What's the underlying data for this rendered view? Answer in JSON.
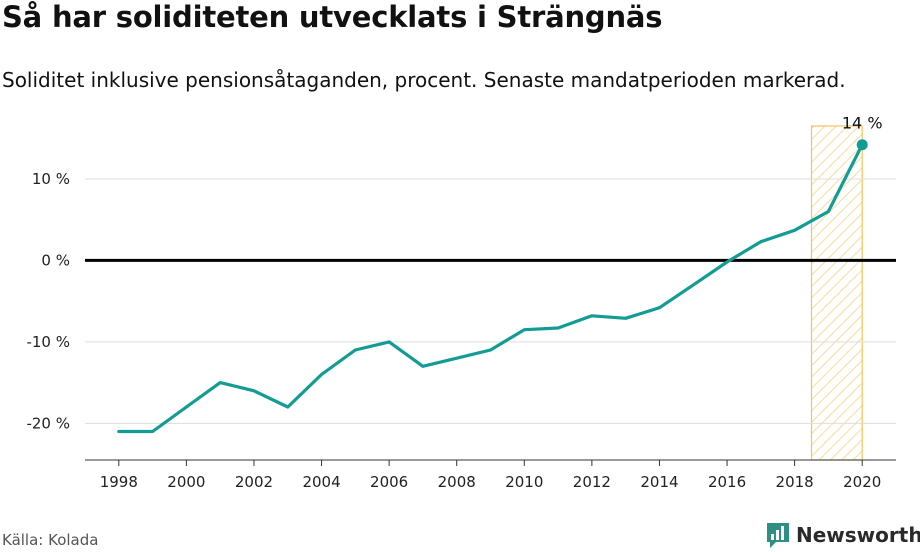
{
  "title": "Så har soliditeten utvecklats i Strängnäs",
  "subtitle": "Soliditet inklusive pensionsåtaganden, procent. Senaste mandatperioden markerad.",
  "source": "Källa: Kolada",
  "brand": {
    "name": "Newsworthy",
    "logo_icon": "newsworthy-chart-logo-icon"
  },
  "colors": {
    "line": "#129c94",
    "highlight": "#f5c25a",
    "zero_line": "#000000",
    "grid": "#dddddd"
  },
  "chart_data": {
    "type": "line",
    "title": "Så har soliditeten utvecklats i Strängnäs",
    "xlabel": "",
    "ylabel": "",
    "x": [
      1998,
      1999,
      2000,
      2001,
      2002,
      2003,
      2004,
      2005,
      2006,
      2007,
      2008,
      2009,
      2010,
      2011,
      2012,
      2013,
      2014,
      2015,
      2016,
      2017,
      2018,
      2019,
      2020
    ],
    "series": [
      {
        "values": [
          -21,
          -21,
          -18,
          -15,
          -16,
          -18,
          -14,
          -11,
          -10,
          -13,
          -12,
          -11,
          -8.5,
          -8.3,
          -6.8,
          -7.1,
          -5.8,
          -3.0,
          -0.2,
          2.3,
          3.7,
          6.0,
          14.2
        ]
      }
    ],
    "ylim": [
      -24.5,
      16.5
    ],
    "xlim": [
      1997,
      2021
    ],
    "y_ticks": [
      10,
      0,
      -10,
      -20
    ],
    "y_tick_labels": [
      "10 %",
      "0 %",
      "-10 %",
      "-20 %"
    ],
    "x_ticks": [
      1998,
      2000,
      2002,
      2004,
      2006,
      2008,
      2010,
      2012,
      2014,
      2016,
      2018,
      2020
    ],
    "x_tick_labels": [
      "1998",
      "2000",
      "2002",
      "2004",
      "2006",
      "2008",
      "2010",
      "2012",
      "2014",
      "2016",
      "2018",
      "2020"
    ],
    "highlight_range": [
      2018.5,
      2020
    ],
    "end_label": "14 %",
    "grid": true
  }
}
